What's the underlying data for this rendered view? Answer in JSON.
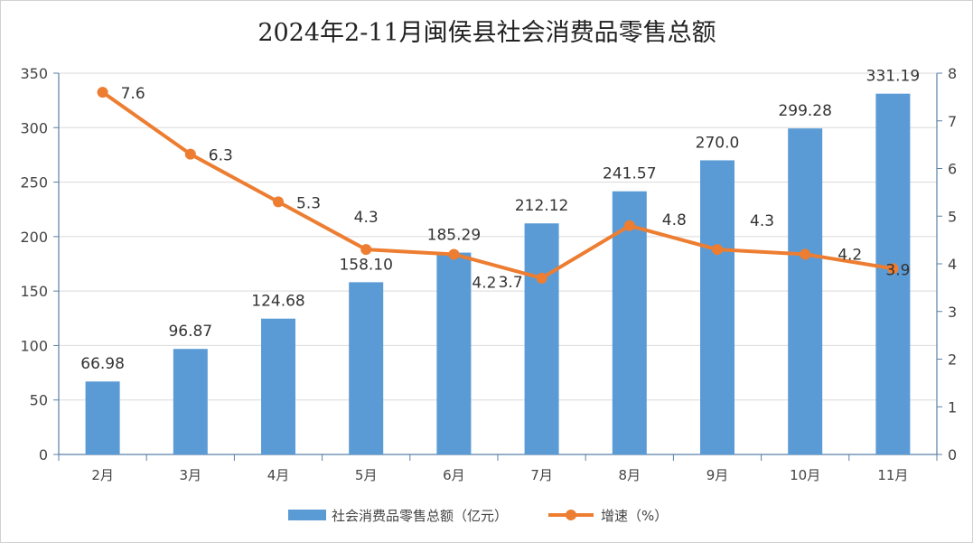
{
  "chart_data": {
    "type": "bar",
    "title": "2024年2-11月闽侯县社会消费品零售总额",
    "categories": [
      "2月",
      "3月",
      "4月",
      "5月",
      "6月",
      "7月",
      "8月",
      "9月",
      "10月",
      "11月"
    ],
    "series": [
      {
        "name": "社会消费品零售总额（亿元）",
        "type": "bar",
        "axis": "left",
        "color": "#5b9bd5",
        "values": [
          66.98,
          96.87,
          124.68,
          158.1,
          185.29,
          212.12,
          241.57,
          270.0,
          299.28,
          331.19
        ],
        "labels": [
          "66.98",
          "96.87",
          "124.68",
          "158.10",
          "185.29",
          "212.12",
          "241.57",
          "270.0",
          "299.28",
          "331.19"
        ]
      },
      {
        "name": "增速（%）",
        "type": "line",
        "axis": "right",
        "color": "#ed7d31",
        "values": [
          7.6,
          6.3,
          5.3,
          4.3,
          4.2,
          3.7,
          4.8,
          4.3,
          4.2,
          3.9
        ],
        "labels": [
          "7.6",
          "6.3",
          "5.3",
          "4.3",
          "4.2",
          "3.7",
          "4.8",
          "4.3",
          "4.2",
          "3.9"
        ]
      }
    ],
    "y_left": {
      "min": 0,
      "max": 350,
      "ticks": [
        "0",
        "50",
        "100",
        "150",
        "200",
        "250",
        "300",
        "350"
      ]
    },
    "y_right": {
      "min": 0,
      "max": 8,
      "ticks": [
        "0",
        "1",
        "2",
        "3",
        "4",
        "5",
        "6",
        "7",
        "8"
      ]
    },
    "grid": true,
    "legend_position": "bottom",
    "xlabel": "",
    "ylabel": ""
  }
}
